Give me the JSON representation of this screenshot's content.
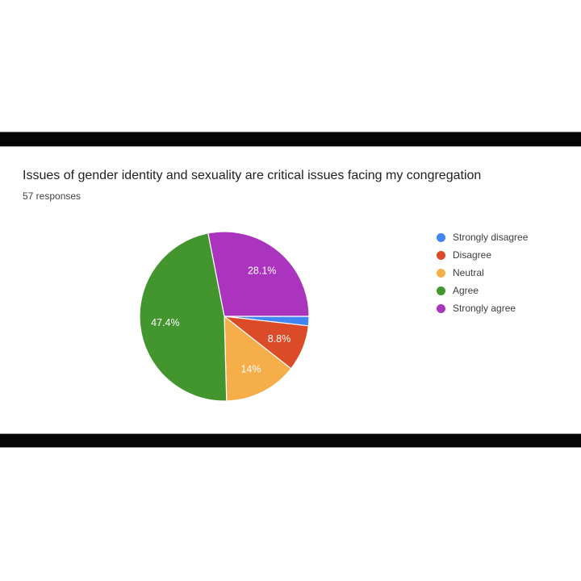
{
  "page": {
    "background": "#ffffff",
    "letterbox_color": "#050505"
  },
  "chart_data": {
    "type": "pie",
    "title": "Issues of gender identity and sexuality are critical issues facing my congregation",
    "subtitle": "57 responses",
    "total_responses": 57,
    "legend_position": "right",
    "start_angle_deg": 90,
    "direction": "clockwise",
    "label_color": "#ffffff",
    "slice_separator_color": "#ffffff",
    "slices": [
      {
        "label": "Strongly disagree",
        "pct": 1.8,
        "display_label": "",
        "color": "#4285F4"
      },
      {
        "label": "Disagree",
        "pct": 8.8,
        "display_label": "8.8%",
        "color": "#DC4B27"
      },
      {
        "label": "Neutral",
        "pct": 14.0,
        "display_label": "14%",
        "color": "#F5AE49"
      },
      {
        "label": "Agree",
        "pct": 47.4,
        "display_label": "47.4%",
        "color": "#43962D"
      },
      {
        "label": "Strongly agree",
        "pct": 28.1,
        "display_label": "28.1%",
        "color": "#AA34BD"
      }
    ]
  }
}
